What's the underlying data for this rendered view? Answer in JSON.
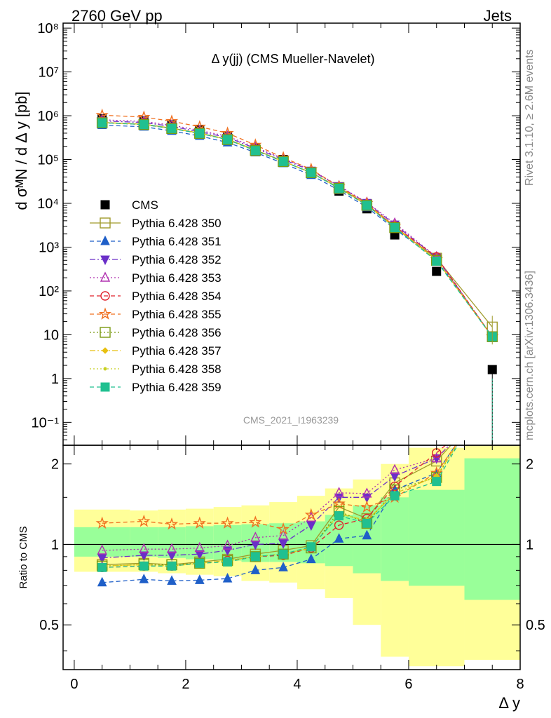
{
  "header": {
    "left": "2760 GeV pp",
    "right": "Jets"
  },
  "side_text": {
    "top": "Rivet 3.1.10, ≥ 2.6M events",
    "bottom": "mcplots.cern.ch [arXiv:1306.3436]"
  },
  "watermark": "CMS_2021_I1963239",
  "chart_data": [
    {
      "type": "scatter",
      "title": "Δ y(jj) (CMS Mueller-Navelet)",
      "ylabel": "d σᴹN / d Δ y [pb]",
      "yscale": "log",
      "ylim": [
        0.03,
        130000000.0
      ],
      "xlim": [
        -0.2,
        8.0
      ],
      "y_ticks": [
        "10⁻¹",
        "1",
        "10",
        "10²",
        "10³",
        "10⁴",
        "10⁵",
        "10⁶",
        "10⁷",
        "10⁸"
      ],
      "x": [
        0.5,
        1.25,
        1.75,
        2.25,
        2.75,
        3.25,
        3.75,
        4.25,
        4.75,
        5.25,
        5.75,
        6.5,
        7.5
      ],
      "legend_position": "middle-left",
      "series": [
        {
          "name": "CMS",
          "color": "#000000",
          "marker": "square-filled",
          "dash": "none",
          "values": [
            850000,
            760000,
            620000,
            470000,
            330000,
            180000,
            100000,
            52000,
            19000,
            7500,
            1900,
            280,
            1.6
          ],
          "yerr_low": [
            0,
            0,
            0,
            0,
            0,
            0,
            0,
            0,
            0,
            0,
            0,
            0,
            1.6
          ]
        },
        {
          "name": "Pythia 6.428 350",
          "color": "#a09a2a",
          "marker": "square-open",
          "dash": "solid",
          "values": [
            700000,
            640000,
            520000,
            400000,
            290000,
            165000,
            92000,
            50000,
            23000,
            9300,
            2800,
            560,
            15
          ]
        },
        {
          "name": "Pythia 6.428 351",
          "color": "#1f5fc8",
          "marker": "triangle-up-filled",
          "dash": "6,4",
          "values": [
            610000,
            560000,
            450000,
            345000,
            245000,
            145000,
            82000,
            44000,
            20000,
            8100,
            2600,
            520,
            9
          ]
        },
        {
          "name": "Pythia 6.428 352",
          "color": "#6a2fc8",
          "marker": "triangle-down-filled",
          "dash": "8,3,2,3",
          "values": [
            760000,
            700000,
            570000,
            430000,
            320000,
            180000,
            100000,
            56000,
            24500,
            10300,
            3300,
            580,
            9
          ]
        },
        {
          "name": "Pythia 6.428 353",
          "color": "#b030b0",
          "marker": "triangle-up-open",
          "dash": "2,3",
          "values": [
            810000,
            740000,
            610000,
            460000,
            340000,
            190000,
            105000,
            58000,
            25000,
            10500,
            3500,
            600,
            9
          ]
        },
        {
          "name": "Pythia 6.428 354",
          "color": "#e0202a",
          "marker": "circle-open",
          "dash": "6,4",
          "values": [
            700000,
            630000,
            510000,
            400000,
            285000,
            160000,
            90000,
            50000,
            22500,
            9400,
            3000,
            600,
            9
          ]
        },
        {
          "name": "Pythia 6.428 355",
          "color": "#f07020",
          "marker": "star-open",
          "dash": "6,4",
          "values": [
            1030000,
            930000,
            750000,
            560000,
            400000,
            215000,
            110000,
            60000,
            24000,
            10000,
            3000,
            520,
            9
          ]
        },
        {
          "name": "Pythia 6.428 356",
          "color": "#7a9a10",
          "marker": "square-open",
          "dash": "2,3",
          "values": [
            690000,
            630000,
            510000,
            395000,
            285000,
            160000,
            90000,
            50000,
            22000,
            9000,
            2800,
            500,
            9
          ]
        },
        {
          "name": "Pythia 6.428 357",
          "color": "#e8c010",
          "marker": "diamond-filled",
          "dash": "8,3,2,3",
          "values": [
            700000,
            640000,
            520000,
            400000,
            290000,
            162000,
            91000,
            50500,
            22500,
            9200,
            2850,
            510,
            9
          ]
        },
        {
          "name": "Pythia 6.428 358",
          "color": "#c8d020",
          "marker": "dot",
          "dash": "2,3",
          "values": [
            700000,
            640000,
            520000,
            400000,
            290000,
            162000,
            91000,
            50500,
            22500,
            9200,
            2850,
            510,
            9
          ]
        },
        {
          "name": "Pythia 6.428 359",
          "color": "#20c090",
          "marker": "square-filled",
          "dash": "6,4",
          "values": [
            690000,
            630000,
            510000,
            395000,
            285000,
            160000,
            90000,
            50000,
            22000,
            9000,
            2800,
            480,
            9
          ]
        }
      ]
    },
    {
      "type": "scatter",
      "ylabel": "Ratio to CMS",
      "xlabel": "Δ y",
      "yscale": "log",
      "ylim": [
        0.34,
        2.35
      ],
      "xlim": [
        -0.2,
        8.0
      ],
      "x_ticks": [
        "0",
        "2",
        "4",
        "6",
        "8"
      ],
      "y_ticks": [
        "0.5",
        "1",
        "2"
      ],
      "reference_line": 1,
      "bands": {
        "x_edges": [
          0,
          1.0,
          1.5,
          2.0,
          2.5,
          3.0,
          3.5,
          4.0,
          4.5,
          5.0,
          5.5,
          6.0,
          7.0,
          8.0
        ],
        "inner_lo": [
          0.9,
          0.9,
          0.89,
          0.88,
          0.87,
          0.86,
          0.86,
          0.85,
          0.83,
          0.78,
          0.73,
          0.7,
          0.62
        ],
        "inner_hi": [
          1.16,
          1.16,
          1.16,
          1.17,
          1.18,
          1.19,
          1.2,
          1.22,
          1.29,
          1.4,
          1.5,
          1.6,
          2.1
        ],
        "outer_lo": [
          0.79,
          0.79,
          0.78,
          0.77,
          0.76,
          0.73,
          0.72,
          0.68,
          0.63,
          0.5,
          0.38,
          0.35,
          0.37
        ],
        "outer_hi": [
          1.35,
          1.34,
          1.35,
          1.36,
          1.38,
          1.4,
          1.44,
          1.52,
          1.62,
          1.75,
          2.0,
          2.3,
          2.35
        ]
      },
      "series": [
        {
          "name": "Pythia 6.428 350",
          "values": [
            0.84,
            0.85,
            0.84,
            0.86,
            0.88,
            0.92,
            0.95,
            0.99,
            1.38,
            1.25,
            1.7,
            2.05
          ]
        },
        {
          "name": "Pythia 6.428 351",
          "values": [
            0.72,
            0.74,
            0.73,
            0.735,
            0.745,
            0.8,
            0.82,
            0.88,
            1.05,
            1.08,
            1.6,
            1.85
          ]
        },
        {
          "name": "Pythia 6.428 352",
          "values": [
            0.89,
            0.91,
            0.91,
            0.92,
            0.95,
            1.0,
            1.01,
            1.18,
            1.5,
            1.5,
            1.8,
            2.1
          ]
        },
        {
          "name": "Pythia 6.428 353",
          "values": [
            0.95,
            0.96,
            0.96,
            0.97,
            0.99,
            1.06,
            1.08,
            1.26,
            1.56,
            1.55,
            1.9,
            2.1
          ]
        },
        {
          "name": "Pythia 6.428 354",
          "values": [
            0.82,
            0.83,
            0.83,
            0.85,
            0.87,
            0.9,
            0.91,
            0.97,
            1.18,
            1.25,
            1.65,
            2.2
          ]
        },
        {
          "name": "Pythia 6.428 355",
          "values": [
            1.2,
            1.22,
            1.19,
            1.2,
            1.2,
            1.21,
            1.14,
            1.29,
            1.42,
            1.38,
            1.5,
            1.85
          ]
        },
        {
          "name": "Pythia 6.428 356",
          "values": [
            0.83,
            0.84,
            0.84,
            0.85,
            0.87,
            0.9,
            0.92,
            0.97,
            1.33,
            1.2,
            1.6,
            1.78
          ]
        },
        {
          "name": "Pythia 6.428 357",
          "values": [
            0.83,
            0.84,
            0.83,
            0.85,
            0.87,
            0.9,
            0.92,
            0.97,
            1.3,
            1.23,
            1.55,
            1.8
          ]
        },
        {
          "name": "Pythia 6.428 358",
          "values": [
            0.83,
            0.84,
            0.83,
            0.85,
            0.87,
            0.9,
            0.92,
            0.97,
            1.3,
            1.23,
            1.55,
            1.8
          ]
        },
        {
          "name": "Pythia 6.428 359",
          "values": [
            0.82,
            0.83,
            0.83,
            0.85,
            0.86,
            0.9,
            0.92,
            0.98,
            1.28,
            1.2,
            1.52,
            1.72
          ]
        }
      ]
    }
  ]
}
